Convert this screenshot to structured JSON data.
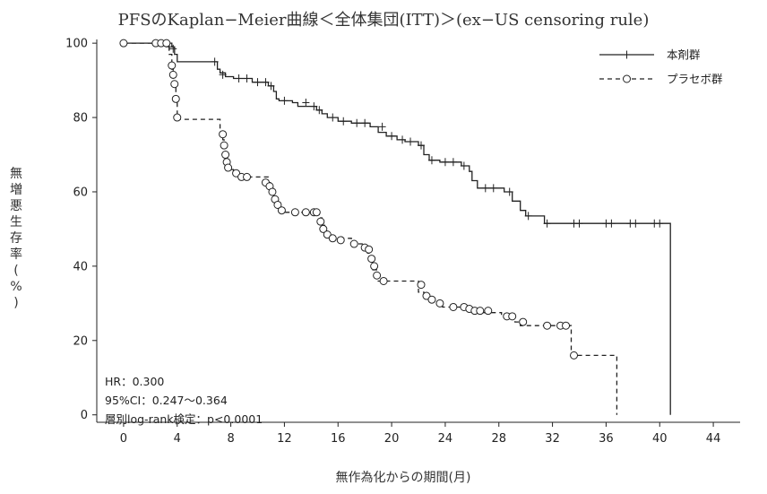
{
  "chart_data": {
    "type": "line",
    "title": "PFSのKaplan−Meier曲線＜全体集団(ITT)＞(ex−US censoring rule)",
    "xlabel": "無作為化からの期間(月)",
    "ylabel": "無増悪生存率(%)",
    "xlim": [
      -2,
      46
    ],
    "ylim": [
      -2,
      101
    ],
    "x_ticks": [
      0,
      4,
      8,
      12,
      16,
      20,
      24,
      28,
      32,
      36,
      40,
      44
    ],
    "y_ticks": [
      0,
      20,
      40,
      60,
      80,
      100
    ],
    "legend_position": "top-right",
    "annotations": {
      "hr": "HR：0.300",
      "ci": "95%CI：0.247〜0.364",
      "test": "層別log-rank検定：p<0.0001"
    },
    "series": [
      {
        "name": "本剤群",
        "style": "solid",
        "marker": "plus",
        "color": "#222222",
        "points": [
          [
            0,
            100
          ],
          [
            3.6,
            100
          ],
          [
            3.6,
            99
          ],
          [
            3.8,
            99
          ],
          [
            3.8,
            97
          ],
          [
            4.0,
            97
          ],
          [
            4.0,
            95
          ],
          [
            7.0,
            95
          ],
          [
            7.0,
            93
          ],
          [
            7.2,
            93
          ],
          [
            7.2,
            92
          ],
          [
            7.6,
            92
          ],
          [
            7.6,
            91
          ],
          [
            8.2,
            91
          ],
          [
            8.2,
            90.5
          ],
          [
            9.6,
            90.5
          ],
          [
            9.6,
            89.5
          ],
          [
            10.8,
            89.5
          ],
          [
            10.8,
            88.5
          ],
          [
            11.2,
            88.5
          ],
          [
            11.2,
            87
          ],
          [
            11.4,
            87
          ],
          [
            11.4,
            85
          ],
          [
            11.6,
            85
          ],
          [
            11.6,
            84.5
          ],
          [
            12.6,
            84.5
          ],
          [
            12.6,
            84
          ],
          [
            13.0,
            84
          ],
          [
            13.0,
            83
          ],
          [
            14.4,
            83
          ],
          [
            14.4,
            82
          ],
          [
            14.8,
            82
          ],
          [
            14.8,
            81
          ],
          [
            15.2,
            81
          ],
          [
            15.2,
            80
          ],
          [
            16.0,
            80
          ],
          [
            16.0,
            79
          ],
          [
            17.0,
            79
          ],
          [
            17.0,
            78.5
          ],
          [
            18.4,
            78.5
          ],
          [
            18.4,
            77.5
          ],
          [
            19.0,
            77.5
          ],
          [
            19.0,
            76
          ],
          [
            19.6,
            76
          ],
          [
            19.6,
            75
          ],
          [
            20.4,
            75
          ],
          [
            20.4,
            74
          ],
          [
            21.0,
            74
          ],
          [
            21.0,
            73.5
          ],
          [
            22.0,
            73.5
          ],
          [
            22.0,
            72.5
          ],
          [
            22.4,
            72.5
          ],
          [
            22.4,
            70
          ],
          [
            22.8,
            70
          ],
          [
            22.8,
            68.5
          ],
          [
            23.6,
            68.5
          ],
          [
            23.6,
            68
          ],
          [
            25.2,
            68
          ],
          [
            25.2,
            67
          ],
          [
            25.8,
            67
          ],
          [
            25.8,
            65.5
          ],
          [
            26.0,
            65.5
          ],
          [
            26.0,
            63
          ],
          [
            26.4,
            63
          ],
          [
            26.4,
            61
          ],
          [
            28.4,
            61
          ],
          [
            28.4,
            60
          ],
          [
            29.0,
            60
          ],
          [
            29.0,
            57.5
          ],
          [
            29.6,
            57.5
          ],
          [
            29.6,
            55
          ],
          [
            30.0,
            55
          ],
          [
            30.0,
            53.5
          ],
          [
            31.4,
            53.5
          ],
          [
            31.4,
            51.5
          ],
          [
            40.8,
            51.5
          ],
          [
            40.8,
            0
          ]
        ],
        "censored": [
          [
            3.4,
            99
          ],
          [
            3.7,
            98.5
          ],
          [
            6.8,
            95
          ],
          [
            7.4,
            91.5
          ],
          [
            8.6,
            90.5
          ],
          [
            9.2,
            90.5
          ],
          [
            10.0,
            89.5
          ],
          [
            10.6,
            89.5
          ],
          [
            11.0,
            88.5
          ],
          [
            12.0,
            84.5
          ],
          [
            13.6,
            84
          ],
          [
            14.2,
            83
          ],
          [
            14.6,
            82
          ],
          [
            15.6,
            80
          ],
          [
            16.4,
            79
          ],
          [
            17.4,
            78.5
          ],
          [
            18.0,
            78.5
          ],
          [
            19.3,
            77.5
          ],
          [
            20.0,
            75
          ],
          [
            20.8,
            74
          ],
          [
            21.4,
            73.5
          ],
          [
            22.2,
            72.5
          ],
          [
            23.0,
            68.5
          ],
          [
            24.0,
            68
          ],
          [
            24.6,
            68
          ],
          [
            25.4,
            67
          ],
          [
            27.0,
            61
          ],
          [
            27.6,
            61
          ],
          [
            28.8,
            60
          ],
          [
            30.2,
            53.5
          ],
          [
            31.6,
            51.5
          ],
          [
            33.6,
            51.5
          ],
          [
            34.0,
            51.5
          ],
          [
            36.0,
            51.5
          ],
          [
            36.4,
            51.5
          ],
          [
            37.8,
            51.5
          ],
          [
            38.2,
            51.5
          ],
          [
            39.6,
            51.5
          ],
          [
            40.0,
            51.5
          ]
        ]
      },
      {
        "name": "プラセボ群",
        "style": "dashed",
        "marker": "circle",
        "color": "#222222",
        "points": [
          [
            0,
            100
          ],
          [
            3.4,
            100
          ],
          [
            3.4,
            97
          ],
          [
            3.6,
            97
          ],
          [
            3.6,
            93
          ],
          [
            3.7,
            93
          ],
          [
            3.7,
            90.5
          ],
          [
            3.8,
            90.5
          ],
          [
            3.8,
            88
          ],
          [
            3.9,
            88
          ],
          [
            3.9,
            84
          ],
          [
            4.0,
            84
          ],
          [
            4.0,
            79.5
          ],
          [
            7.2,
            79.5
          ],
          [
            7.2,
            76
          ],
          [
            7.4,
            76
          ],
          [
            7.4,
            74
          ],
          [
            7.5,
            74
          ],
          [
            7.5,
            71
          ],
          [
            7.6,
            71
          ],
          [
            7.6,
            69
          ],
          [
            7.7,
            69
          ],
          [
            7.7,
            67
          ],
          [
            7.8,
            67
          ],
          [
            7.8,
            66
          ],
          [
            8.2,
            66
          ],
          [
            8.2,
            65
          ],
          [
            8.6,
            65
          ],
          [
            8.6,
            64
          ],
          [
            10.8,
            64
          ],
          [
            10.8,
            62.5
          ],
          [
            11.0,
            62.5
          ],
          [
            11.0,
            61
          ],
          [
            11.2,
            61
          ],
          [
            11.2,
            58.5
          ],
          [
            11.4,
            58.5
          ],
          [
            11.4,
            57
          ],
          [
            11.6,
            57
          ],
          [
            11.6,
            55.5
          ],
          [
            12.0,
            55.5
          ],
          [
            12.0,
            54.5
          ],
          [
            14.6,
            54.5
          ],
          [
            14.6,
            53
          ],
          [
            14.8,
            53
          ],
          [
            14.8,
            51
          ],
          [
            15.0,
            51
          ],
          [
            15.0,
            49
          ],
          [
            15.4,
            49
          ],
          [
            15.4,
            47.5
          ],
          [
            17.0,
            47.5
          ],
          [
            17.0,
            46
          ],
          [
            17.8,
            46
          ],
          [
            17.8,
            45
          ],
          [
            18.2,
            45
          ],
          [
            18.2,
            43.5
          ],
          [
            18.4,
            43.5
          ],
          [
            18.4,
            41
          ],
          [
            18.6,
            41
          ],
          [
            18.6,
            39
          ],
          [
            19.0,
            39
          ],
          [
            19.0,
            36
          ],
          [
            22.0,
            36
          ],
          [
            22.0,
            33
          ],
          [
            22.4,
            33
          ],
          [
            22.4,
            31.5
          ],
          [
            22.8,
            31.5
          ],
          [
            22.8,
            30.5
          ],
          [
            23.2,
            30.5
          ],
          [
            23.2,
            30
          ],
          [
            23.8,
            30
          ],
          [
            23.8,
            29
          ],
          [
            26.0,
            29
          ],
          [
            26.0,
            28
          ],
          [
            26.4,
            28
          ],
          [
            26.4,
            27.5
          ],
          [
            28.2,
            27.5
          ],
          [
            28.2,
            26.5
          ],
          [
            29.2,
            26.5
          ],
          [
            29.2,
            25
          ],
          [
            29.6,
            25
          ],
          [
            29.6,
            24
          ],
          [
            33.4,
            24
          ],
          [
            33.4,
            16
          ],
          [
            36.8,
            16
          ],
          [
            36.8,
            0
          ]
        ],
        "censored": [
          [
            0,
            100
          ],
          [
            2.4,
            100
          ],
          [
            2.8,
            100
          ],
          [
            3.2,
            100
          ],
          [
            3.6,
            94
          ],
          [
            3.7,
            91.5
          ],
          [
            3.8,
            89
          ],
          [
            3.9,
            85
          ],
          [
            4.0,
            80
          ],
          [
            7.4,
            75.5
          ],
          [
            7.5,
            72.5
          ],
          [
            7.6,
            70
          ],
          [
            7.7,
            68
          ],
          [
            7.8,
            66.5
          ],
          [
            8.4,
            65
          ],
          [
            8.8,
            64
          ],
          [
            9.2,
            64
          ],
          [
            10.6,
            62.5
          ],
          [
            10.9,
            61.5
          ],
          [
            11.1,
            60
          ],
          [
            11.3,
            58
          ],
          [
            11.5,
            56.5
          ],
          [
            11.8,
            55
          ],
          [
            12.8,
            54.5
          ],
          [
            13.6,
            54.5
          ],
          [
            14.2,
            54.5
          ],
          [
            14.4,
            54.5
          ],
          [
            14.7,
            52
          ],
          [
            14.9,
            50
          ],
          [
            15.2,
            48.5
          ],
          [
            15.6,
            47.5
          ],
          [
            16.2,
            47
          ],
          [
            17.2,
            46
          ],
          [
            18.0,
            45
          ],
          [
            18.3,
            44.5
          ],
          [
            18.5,
            42
          ],
          [
            18.7,
            40
          ],
          [
            18.9,
            37.5
          ],
          [
            19.4,
            36
          ],
          [
            22.2,
            35
          ],
          [
            22.6,
            32
          ],
          [
            23.0,
            31
          ],
          [
            23.6,
            30
          ],
          [
            24.6,
            29
          ],
          [
            25.4,
            29
          ],
          [
            25.8,
            28.5
          ],
          [
            26.2,
            28
          ],
          [
            26.6,
            28
          ],
          [
            27.2,
            28
          ],
          [
            28.6,
            26.5
          ],
          [
            29.0,
            26.5
          ],
          [
            29.8,
            25
          ],
          [
            31.6,
            24
          ],
          [
            32.6,
            24
          ],
          [
            33.0,
            24
          ],
          [
            33.6,
            16
          ]
        ]
      }
    ]
  }
}
